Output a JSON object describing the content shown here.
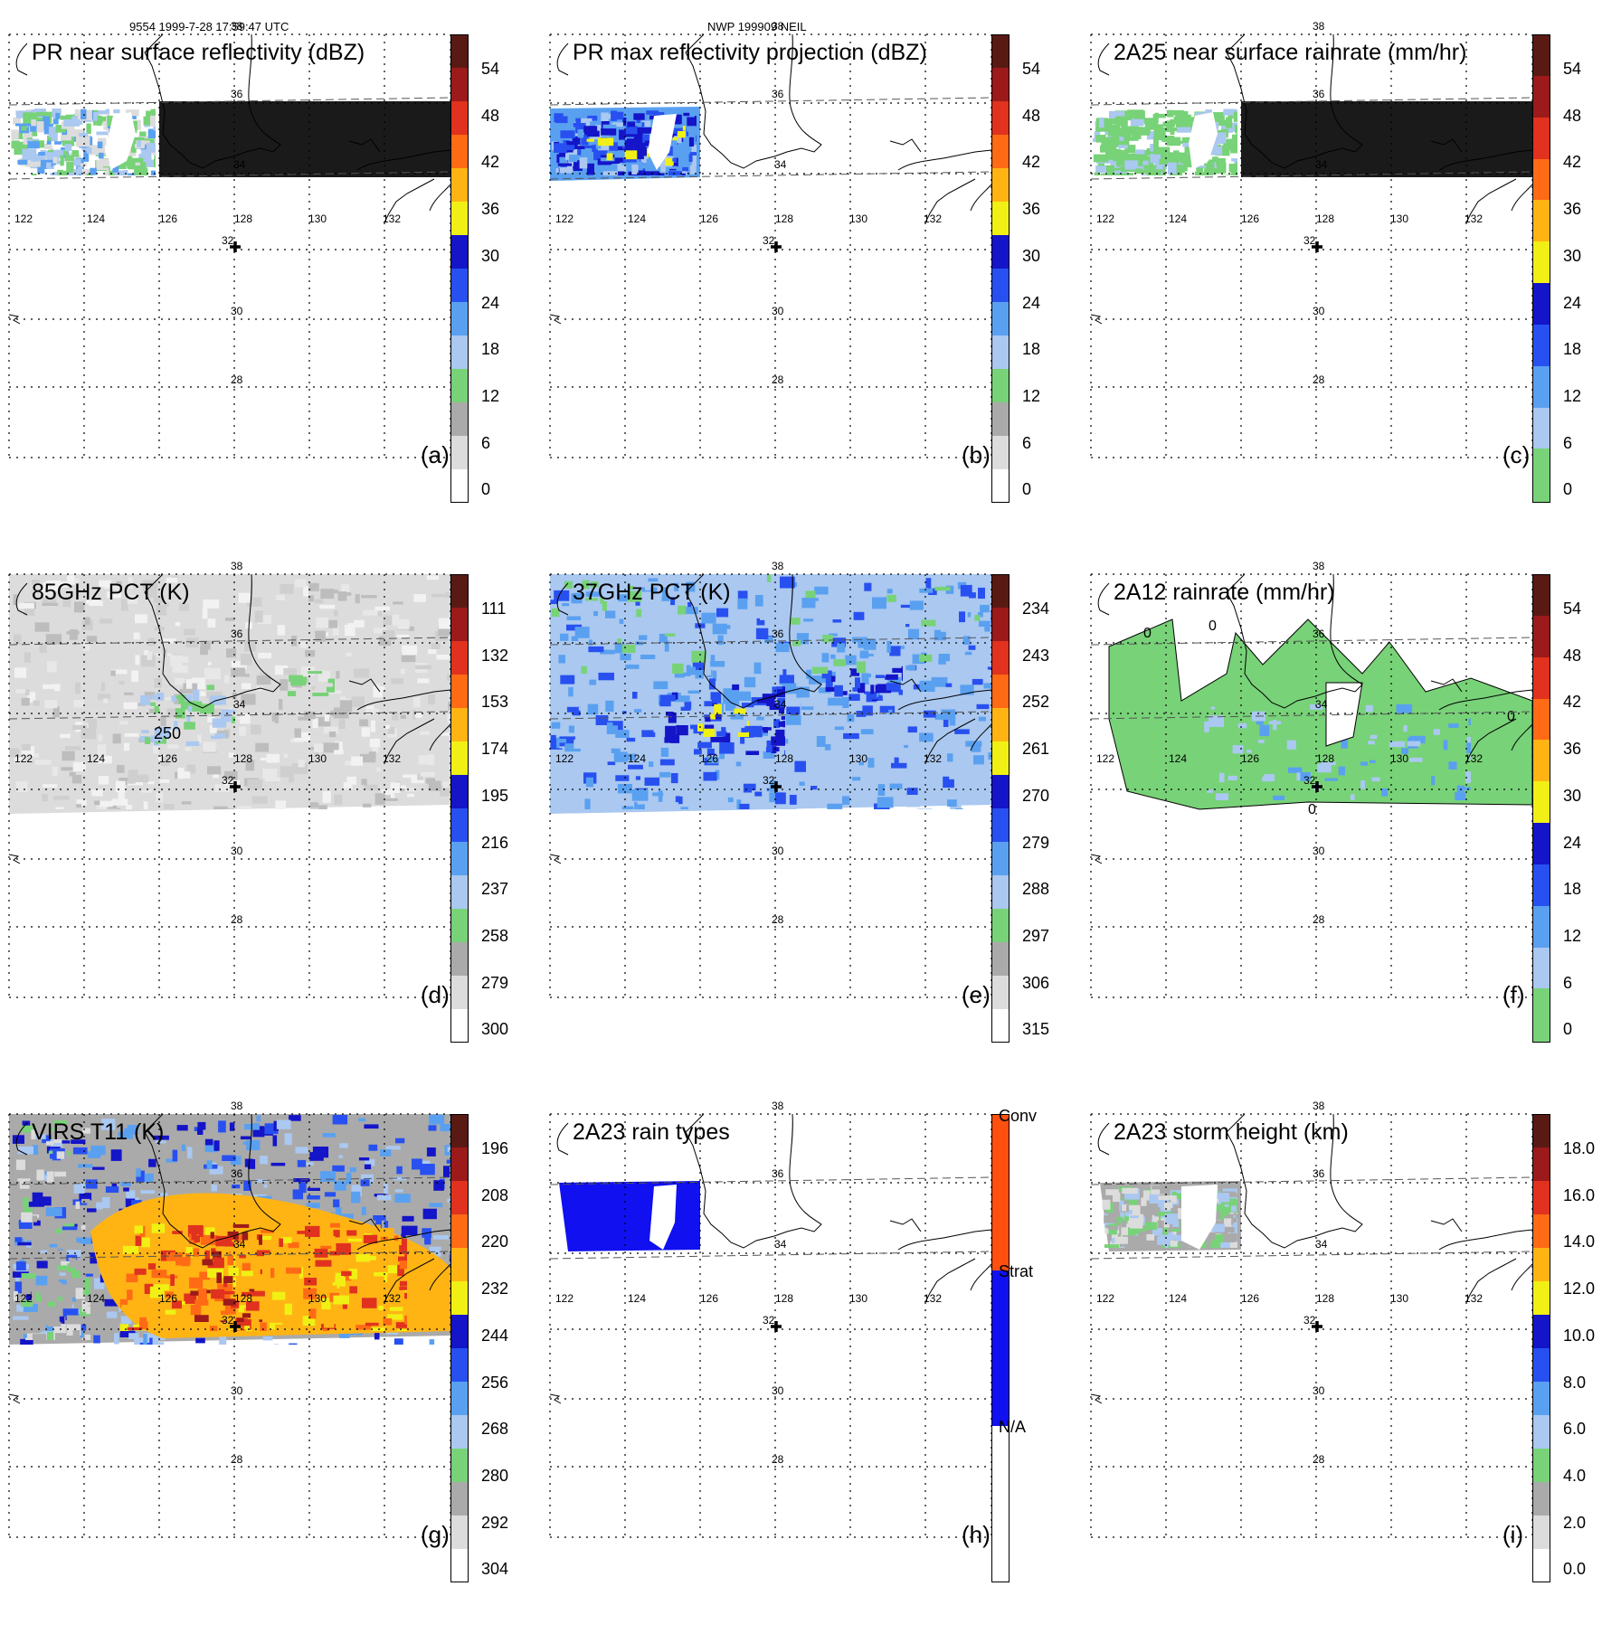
{
  "header": {
    "left": "9554 1999-7-28 17:59:47 UTC",
    "center": "NWP 199909 NEIL"
  },
  "map": {
    "lon_labels": [
      "122",
      "124",
      "126",
      "128",
      "130",
      "132"
    ],
    "lat_labels": [
      "38",
      "36",
      "34",
      "32",
      "30",
      "28"
    ]
  },
  "contour_labels": {
    "d": "250",
    "f": [
      "0",
      "0",
      "0",
      "0"
    ]
  },
  "panels": [
    {
      "id": "a",
      "title": "PR near surface reflectivity (dBZ)",
      "label": "(a)",
      "ticks": [
        "54",
        "48",
        "42",
        "36",
        "30",
        "24",
        "18",
        "12",
        "6",
        "0"
      ]
    },
    {
      "id": "b",
      "title": "PR max reflectivity projection (dBZ)",
      "label": "(b)",
      "ticks": [
        "54",
        "48",
        "42",
        "36",
        "30",
        "24",
        "18",
        "12",
        "6",
        "0"
      ]
    },
    {
      "id": "c",
      "title": "2A25 near surface rainrate (mm/hr)",
      "label": "(c)",
      "ticks": [
        "54",
        "48",
        "42",
        "36",
        "30",
        "24",
        "18",
        "12",
        "6",
        "0"
      ]
    },
    {
      "id": "d",
      "title": "85GHz PCT (K)",
      "label": "(d)",
      "ticks": [
        "111",
        "132",
        "153",
        "174",
        "195",
        "216",
        "237",
        "258",
        "279",
        "300"
      ]
    },
    {
      "id": "e",
      "title": "37GHz PCT (K)",
      "label": "(e)",
      "ticks": [
        "234",
        "243",
        "252",
        "261",
        "270",
        "279",
        "288",
        "297",
        "306",
        "315"
      ]
    },
    {
      "id": "f",
      "title": "2A12 rainrate (mm/hr)",
      "label": "(f)",
      "ticks": [
        "54",
        "48",
        "42",
        "36",
        "30",
        "24",
        "18",
        "12",
        "6",
        "0"
      ]
    },
    {
      "id": "g",
      "title": "VIRS T11 (K)",
      "label": "(g)",
      "ticks": [
        "196",
        "208",
        "220",
        "232",
        "244",
        "256",
        "268",
        "280",
        "292",
        "304"
      ]
    },
    {
      "id": "h",
      "title": "2A23 rain types",
      "label": "(h)",
      "ticks": [
        "Conv",
        "Strat",
        "N/A"
      ]
    },
    {
      "id": "i",
      "title": "2A23 storm height (km)",
      "label": "(i)",
      "ticks": [
        "18.0",
        "16.0",
        "14.0",
        "12.0",
        "10.0",
        "8.0",
        "6.0",
        "4.0",
        "2.0",
        "0.0"
      ]
    }
  ],
  "colors": {
    "std_scale": [
      "#5a1a14",
      "#9c1a1a",
      "#e0321e",
      "#ff6a14",
      "#ffb414",
      "#f0f014",
      "#1414c8",
      "#2850f0",
      "#5aa0f0",
      "#aac8f0",
      "#78d278",
      "#aaaaaa",
      "#dcdcdc",
      "#ffffff"
    ],
    "rain_scale": [
      "#5a1a14",
      "#9c1a1a",
      "#e0321e",
      "#ff6a14",
      "#ffb414",
      "#f0f014",
      "#1414c8",
      "#2850f0",
      "#5aa0f0",
      "#aac8f0",
      "#78d278"
    ],
    "rain_type": [
      "#ff5010",
      "#1010f0",
      "#ffffff"
    ]
  }
}
